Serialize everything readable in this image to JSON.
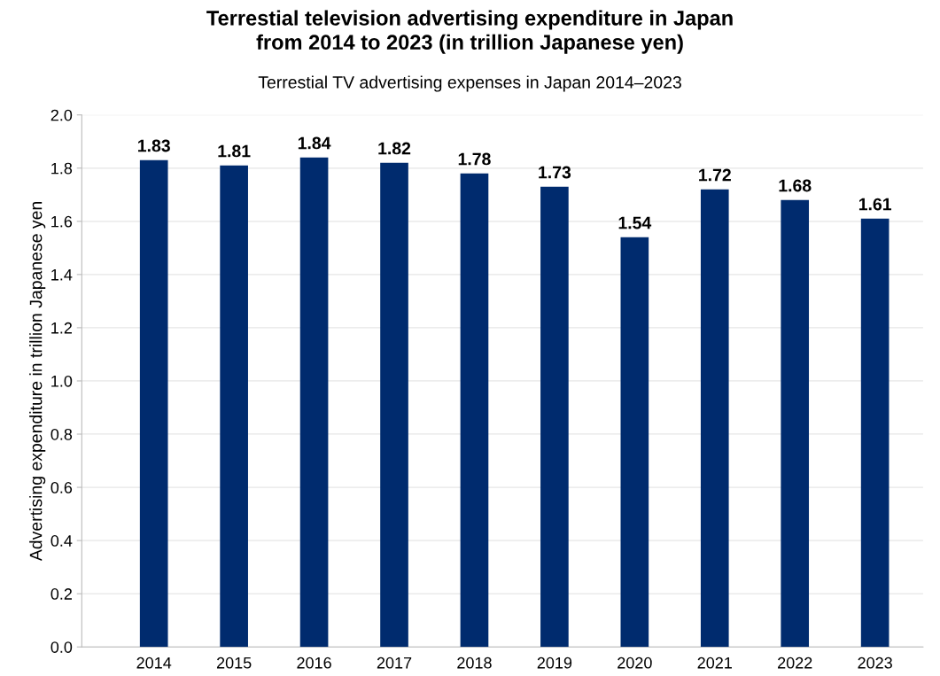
{
  "chart_data": {
    "type": "bar",
    "title": "Terrestial television advertising expenditure in Japan\nfrom 2014 to 2023 (in trillion Japanese yen)",
    "subtitle": "Terrestial TV advertising expenses in Japan 2014–2023",
    "ylabel": "Advertising expenditure in trillion Japanese yen",
    "categories": [
      "2014",
      "2015",
      "2016",
      "2017",
      "2018",
      "2019",
      "2020",
      "2021",
      "2022",
      "2023"
    ],
    "values": [
      1.83,
      1.81,
      1.84,
      1.82,
      1.78,
      1.73,
      1.54,
      1.72,
      1.68,
      1.61
    ],
    "color": "#002b6e",
    "ylim": [
      0,
      2.0
    ],
    "yticks": [
      {
        "value": 0,
        "label": "0.0"
      },
      {
        "value": 0.2,
        "label": "0.2"
      },
      {
        "value": 0.4,
        "label": "0.4"
      },
      {
        "value": 0.6,
        "label": "0.6"
      },
      {
        "value": 0.8,
        "label": "0.8"
      },
      {
        "value": 1.0,
        "label": "1.0"
      },
      {
        "value": 1.2,
        "label": "1.2"
      },
      {
        "value": 1.4,
        "label": "1.4"
      },
      {
        "value": 1.6,
        "label": "1.6"
      },
      {
        "value": 1.8,
        "label": "1.8"
      },
      {
        "value": 2.0,
        "label": "2.0"
      }
    ],
    "grid": "y",
    "data_labels": true
  }
}
